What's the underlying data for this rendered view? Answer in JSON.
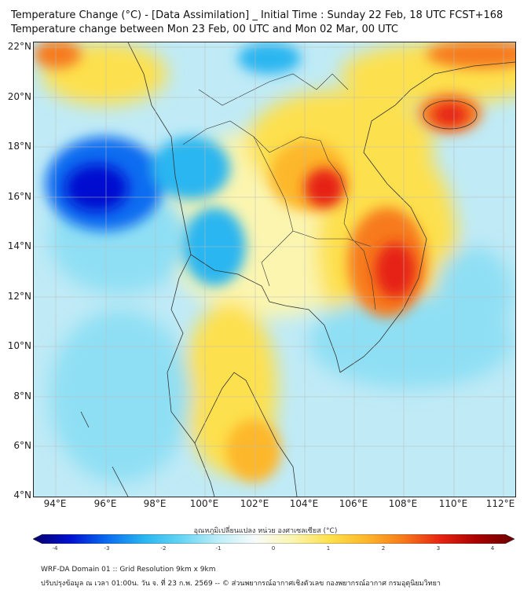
{
  "header": {
    "title_line1": "Temperature Change (°C) - [Data Assimilation] _ Initial Time : Sunday 22 Feb, 18 UTC FCST+168",
    "title_line2": "Temperature change between Mon 23 Feb, 00 UTC and Mon 02 Mar, 00 UTC"
  },
  "map": {
    "lat_labels": [
      "22°N",
      "20°N",
      "18°N",
      "16°N",
      "14°N",
      "12°N",
      "10°N",
      "8°N",
      "6°N",
      "4°N"
    ],
    "lon_labels": [
      "94°E",
      "96°E",
      "98°E",
      "100°E",
      "102°E",
      "104°E",
      "106°E",
      "108°E",
      "110°E",
      "112°E"
    ],
    "lat_range": [
      4,
      22.2
    ],
    "lon_range": [
      93,
      112.4
    ]
  },
  "colorbar": {
    "title": "อุณหภูมิเปลี่ยนแปลง หน่วย องศาเซลเซียส (°C)",
    "tick_labels": [
      "-4",
      "-3",
      "-2",
      "-1",
      "0",
      "1",
      "2",
      "3",
      "4"
    ],
    "range": [
      -4,
      4
    ],
    "colors": [
      "#08006b",
      "#0010d0",
      "#0a6cf0",
      "#29b6f0",
      "#66d4f4",
      "#bdeef8",
      "#f8fbfa",
      "#fbf5b0",
      "#fde04d",
      "#fdb72b",
      "#f77a1a",
      "#e62412",
      "#a80000",
      "#6b0000"
    ]
  },
  "footer": {
    "line1": "WRF-DA Domain 01 :: Grid Resolution 9km x 9km",
    "line2": "ปรับปรุงข้อมูล ณ เวลา 01:00น. วัน จ. ที่ 23 ก.พ. 2569 -- © ส่วนพยากรณ์อากาศเชิงตัวเลข กองพยากรณ์อากาศ กรมอุตุนิยมวิทยา"
  }
}
